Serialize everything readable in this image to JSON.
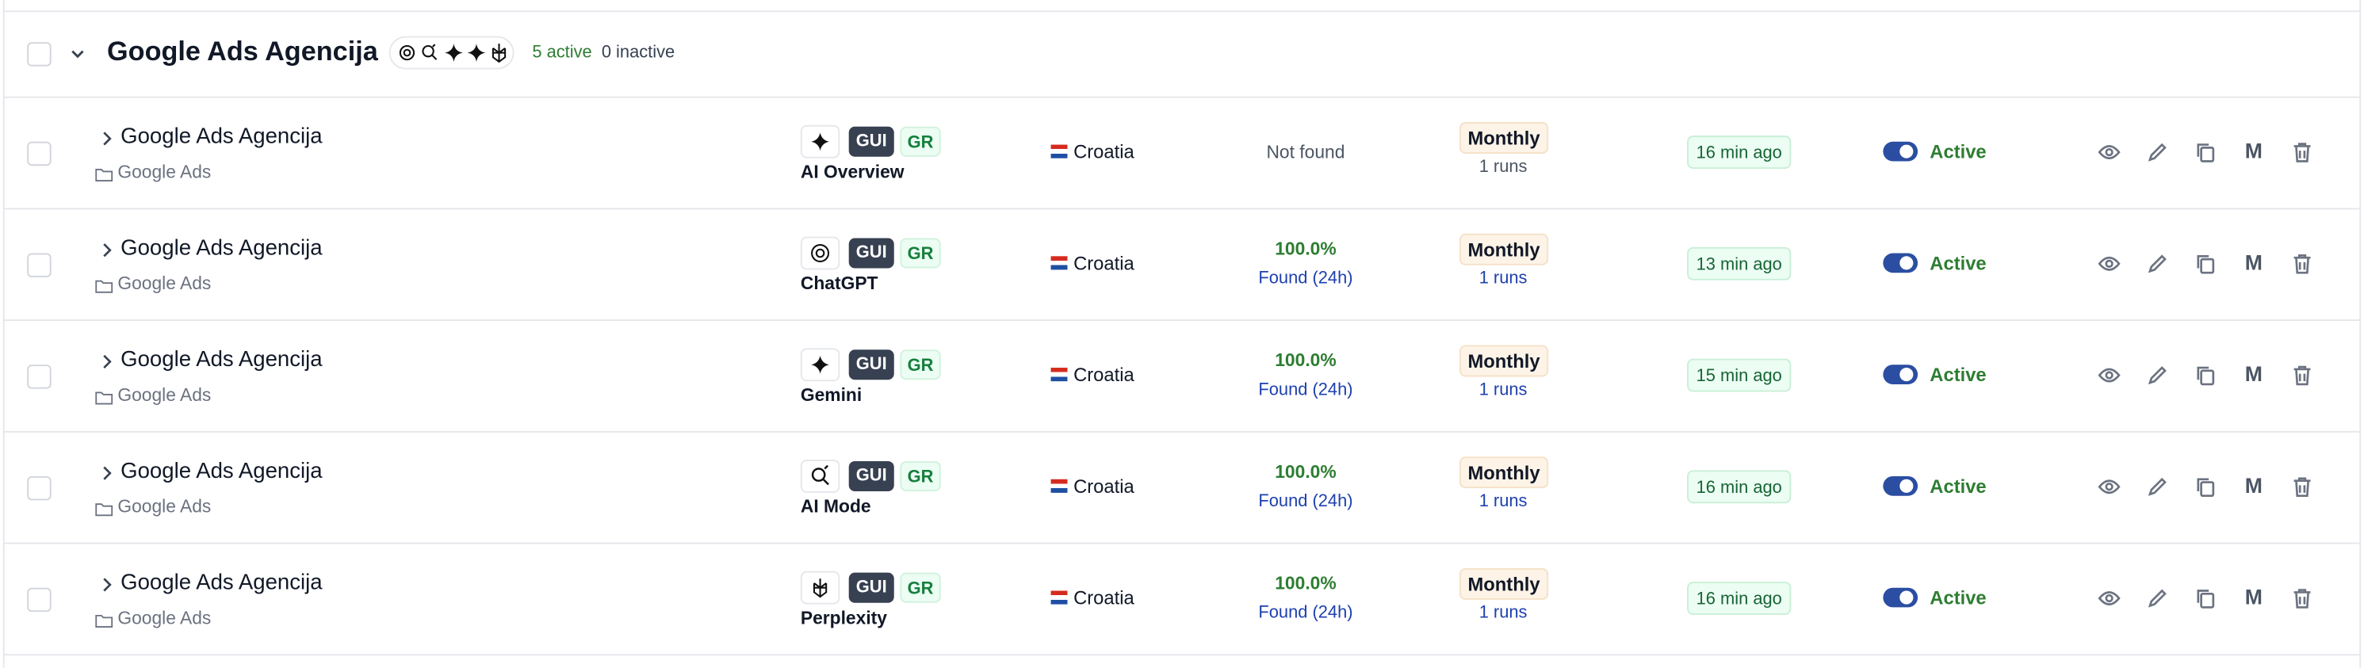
{
  "header": {
    "title": "Google Ads Agencija",
    "active": "5 active",
    "inactive": "0 inactive"
  },
  "rows": [
    {
      "name": "Google Ads Agencija",
      "folder": "Google Ads",
      "engine": "AI Overview",
      "icon": "sparkle",
      "badges": [
        "GUI",
        "GR"
      ],
      "country": "Croatia",
      "result": "Not found",
      "found": null,
      "frequency": "Monthly",
      "runs": "1 runs",
      "last_run": "16 min ago",
      "status": "Active",
      "action": "M"
    },
    {
      "name": "Google Ads Agencija",
      "folder": "Google Ads",
      "engine": "ChatGPT",
      "icon": "openai",
      "badges": [
        "GUI",
        "GR"
      ],
      "country": "Croatia",
      "result": "100.0%",
      "found": "Found (24h)",
      "frequency": "Monthly",
      "runs": "1 runs",
      "last_run": "13 min ago",
      "status": "Active",
      "action": "M"
    },
    {
      "name": "Google Ads Agencija",
      "folder": "Google Ads",
      "engine": "Gemini",
      "icon": "sparkle",
      "badges": [
        "GUI",
        "GR"
      ],
      "country": "Croatia",
      "result": "100.0%",
      "found": "Found (24h)",
      "frequency": "Monthly",
      "runs": "1 runs",
      "last_run": "15 min ago",
      "status": "Active",
      "action": "M"
    },
    {
      "name": "Google Ads Agencija",
      "folder": "Google Ads",
      "engine": "AI Mode",
      "icon": "search",
      "badges": [
        "GUI",
        "GR"
      ],
      "country": "Croatia",
      "result": "100.0%",
      "found": "Found (24h)",
      "frequency": "Monthly",
      "runs": "1 runs",
      "last_run": "16 min ago",
      "status": "Active",
      "action": "M"
    },
    {
      "name": "Google Ads Agencija",
      "folder": "Google Ads",
      "engine": "Perplexity",
      "icon": "perplexity",
      "badges": [
        "GUI",
        "GR"
      ],
      "country": "Croatia",
      "result": "100.0%",
      "found": "Found (24h)",
      "frequency": "Monthly",
      "runs": "1 runs",
      "last_run": "16 min ago",
      "status": "Active",
      "action": "M"
    }
  ]
}
